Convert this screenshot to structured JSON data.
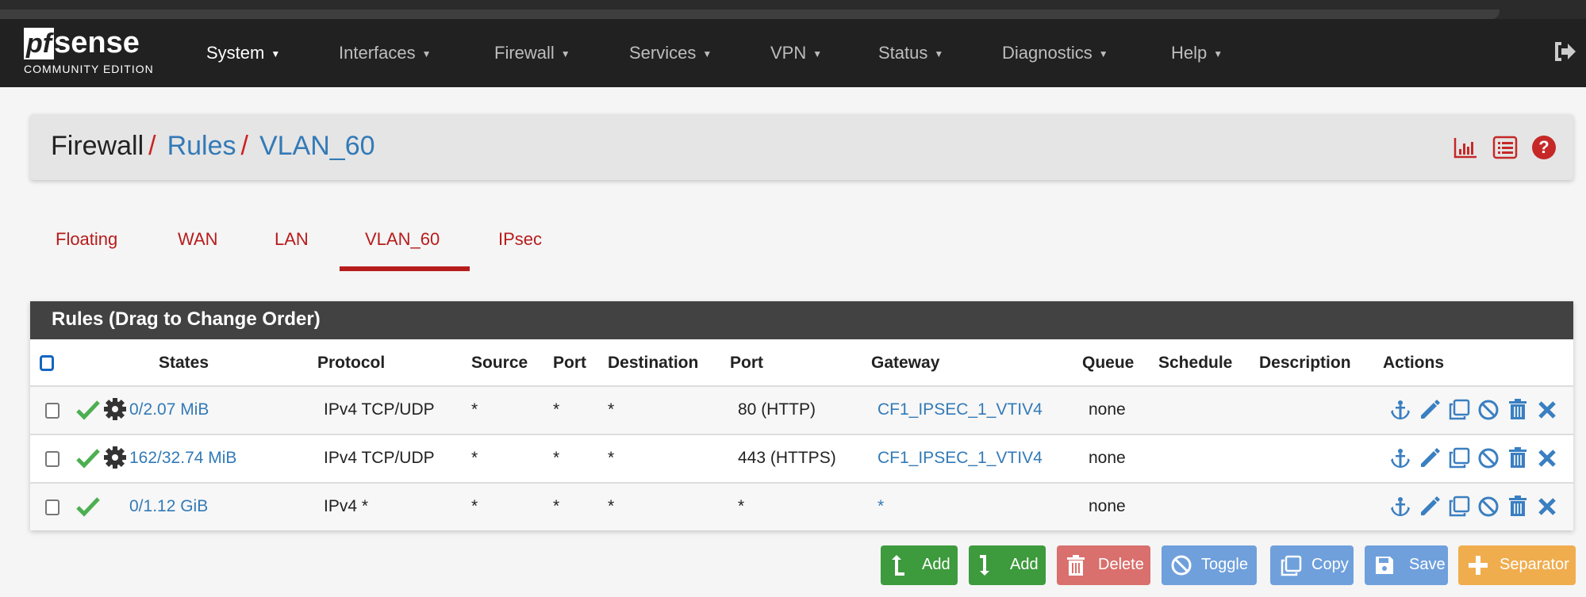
{
  "navbar": {
    "logo": {
      "brand": "pfsense",
      "subtitle": "COMMUNITY EDITION"
    },
    "items": [
      {
        "label": "System"
      },
      {
        "label": "Interfaces"
      },
      {
        "label": "Firewall"
      },
      {
        "label": "Services"
      },
      {
        "label": "VPN"
      },
      {
        "label": "Status"
      },
      {
        "label": "Diagnostics"
      },
      {
        "label": "Help"
      }
    ],
    "logout_icon": "sign-out-icon"
  },
  "breadcrumb": {
    "root": "Firewall",
    "sep": "/",
    "level1": "Rules",
    "level2": "VLAN_60",
    "icons": [
      "bar-chart-icon",
      "list-icon",
      "help-icon"
    ]
  },
  "tabs": [
    {
      "label": "Floating"
    },
    {
      "label": "WAN"
    },
    {
      "label": "LAN"
    },
    {
      "label": "VLAN_60",
      "active": true
    },
    {
      "label": "IPsec"
    }
  ],
  "rules": {
    "title": "Rules (Drag to Change Order)",
    "columns": [
      "States",
      "Protocol",
      "Source",
      "Port",
      "Destination",
      "Port",
      "Gateway",
      "Queue",
      "Schedule",
      "Description",
      "Actions"
    ],
    "rows": [
      {
        "pass": true,
        "advanced": true,
        "states": "0/2.07 MiB",
        "protocol": "IPv4 TCP/UDP",
        "source": "*",
        "source_port": "*",
        "destination": "*",
        "dest_port": "80 (HTTP)",
        "gateway": "CF1_IPSEC_1_VTIV4",
        "queue": "none",
        "schedule": "",
        "description": ""
      },
      {
        "pass": true,
        "advanced": true,
        "states": "162/32.74 MiB",
        "protocol": "IPv4 TCP/UDP",
        "source": "*",
        "source_port": "*",
        "destination": "*",
        "dest_port": "443 (HTTPS)",
        "gateway": "CF1_IPSEC_1_VTIV4",
        "queue": "none",
        "schedule": "",
        "description": ""
      },
      {
        "pass": true,
        "advanced": false,
        "states": "0/1.12 GiB",
        "protocol": "IPv4 *",
        "source": "*",
        "source_port": "*",
        "destination": "*",
        "dest_port": "*",
        "gateway": "*",
        "queue": "none",
        "schedule": "",
        "description": ""
      }
    ]
  },
  "buttons": {
    "add_top": "Add",
    "add_bottom": "Add",
    "delete": "Delete",
    "toggle": "Toggle",
    "copy": "Copy",
    "save": "Save",
    "separator": "Separator"
  },
  "colors": {
    "accent_red": "#b71c1c",
    "link_blue": "#337ab7",
    "pass_green": "#4caf50",
    "add_green": "#3d9a3d",
    "delete": "#d9706d",
    "action_blue": "#6fa0dc",
    "separator_orange": "#f0ad4e"
  }
}
